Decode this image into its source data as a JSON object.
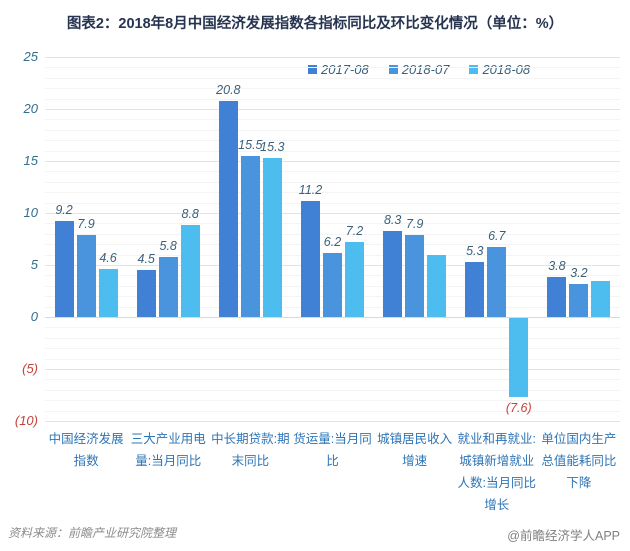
{
  "chart_data": {
    "type": "bar",
    "title": "图表2：2018年8月中国经济发展指数各指标同比及环比变化情况（单位：%）",
    "unit": "%",
    "categories": [
      "中国经济发展指数",
      "三大产业用电量:当月同比",
      "中长期贷款:期末同比",
      "货运量:当月同比",
      "城镇居民收入增速",
      "就业和再就业:城镇新增就业人数:当月同比增长",
      "单位国内生产总值能耗同比下降"
    ],
    "category_lines": [
      [
        "中国经济发展",
        "指数"
      ],
      [
        "三大产业用电",
        "量:当月同比"
      ],
      [
        "中长期贷款:期",
        "末同比"
      ],
      [
        "货运量:当月同",
        "比"
      ],
      [
        "城镇居民收入",
        "增速"
      ],
      [
        "就业和再就业:",
        "城镇新增就业",
        "人数:当月同比",
        "增长"
      ],
      [
        "单位国内生产",
        "总值能耗同比",
        "下降"
      ]
    ],
    "series": [
      {
        "name": "2017-08",
        "color": "#4080d5",
        "values": [
          9.2,
          4.5,
          20.8,
          11.2,
          8.3,
          5.3,
          3.8
        ],
        "labels": [
          "9.2",
          "4.5",
          "20.8",
          "11.2",
          "8.3",
          "5.3",
          "3.8"
        ]
      },
      {
        "name": "2018-07",
        "color": "#4a94dd",
        "values": [
          7.9,
          5.8,
          15.5,
          6.2,
          7.9,
          6.7,
          3.2
        ],
        "labels": [
          "7.9",
          "5.8",
          "15.5",
          "6.2",
          "7.9",
          "6.7",
          "3.2"
        ]
      },
      {
        "name": "2018-08",
        "color": "#4dbdf0",
        "values": [
          4.6,
          8.8,
          15.3,
          7.2,
          6.0,
          -7.6,
          3.5
        ],
        "labels": [
          "4.6",
          "8.8",
          "15.3",
          "7.2",
          "",
          "(7.6)",
          ""
        ]
      }
    ],
    "y_ticks": [
      "25",
      "20",
      "15",
      "10",
      "5",
      "0",
      "(5)",
      "(10)"
    ],
    "y_tick_values": [
      25,
      20,
      15,
      10,
      5,
      0,
      -5,
      -10
    ],
    "ylim": [
      -10,
      25
    ],
    "grid": true,
    "legend_position": "top"
  },
  "footer": {
    "source": "资料来源：前瞻产业研究院整理",
    "watermark": "@前瞻经济学人APP"
  },
  "colors": {
    "title": "#263450",
    "axis_tick": "#31708f",
    "negative": "#c5403c",
    "category_label": "#2e75b6",
    "grid_major": "#e3e3e3",
    "grid_minor": "#f4f4f4",
    "series_2017_08": "#4080d5",
    "series_2018_07": "#4a94dd",
    "series_2018_08": "#4dbdf0"
  }
}
